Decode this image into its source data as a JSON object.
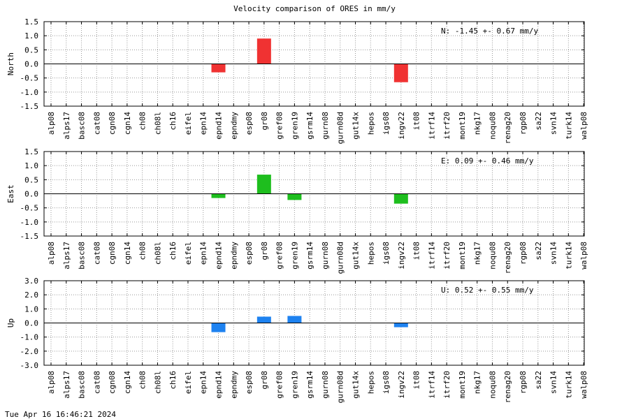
{
  "title": "Velocity comparison of ORES in mm/y",
  "footer": "Tue Apr 16 16:46:21 2024",
  "chart_data": [
    {
      "type": "bar",
      "ylabel": "North",
      "ylim": [
        -1.5,
        1.5
      ],
      "yticks": [
        1.5,
        1.0,
        0.5,
        0.0,
        -0.5,
        -1.0,
        -1.5
      ],
      "ytick_labels": [
        "1.5",
        "1.0",
        "0.5",
        "0.0",
        "-0.5",
        "-1.0",
        "-1.5"
      ],
      "color": "#f03232",
      "annotation": "N:  -1.45 +-  0.67 mm/y",
      "grid": true,
      "categories": [
        "alp08",
        "alps17",
        "basc08",
        "cat08",
        "cgn08",
        "cgn14",
        "ch08",
        "ch08l",
        "ch16",
        "eifel",
        "epn14",
        "epnd14",
        "epndmy",
        "esp08",
        "gr08",
        "gref08",
        "gren19",
        "gsrm14",
        "gurn08",
        "gurn08d",
        "gut14x",
        "hepos",
        "igs08",
        "ingv22",
        "it08",
        "itrf14",
        "itrf20",
        "mont19",
        "nkg17",
        "noqu08",
        "renag20",
        "rgp08",
        "sa22",
        "svn14",
        "turk14",
        "walp08"
      ],
      "values": [
        null,
        null,
        null,
        null,
        null,
        null,
        null,
        null,
        null,
        null,
        null,
        -0.3,
        null,
        null,
        0.9,
        null,
        null,
        null,
        null,
        null,
        null,
        null,
        null,
        -0.65,
        null,
        null,
        null,
        null,
        null,
        null,
        null,
        null,
        null,
        null,
        null,
        null
      ]
    },
    {
      "type": "bar",
      "ylabel": "East",
      "ylim": [
        -1.5,
        1.5
      ],
      "yticks": [
        1.5,
        1.0,
        0.5,
        0.0,
        -0.5,
        -1.0,
        -1.5
      ],
      "ytick_labels": [
        "1.5",
        "1.0",
        "0.5",
        "0.0",
        "-0.5",
        "-1.0",
        "-1.5"
      ],
      "color": "#1ebe1e",
      "annotation": "E:   0.09 +-  0.46 mm/y",
      "grid": true,
      "categories": [
        "alp08",
        "alps17",
        "basc08",
        "cat08",
        "cgn08",
        "cgn14",
        "ch08",
        "ch08l",
        "ch16",
        "eifel",
        "epn14",
        "epnd14",
        "epndmy",
        "esp08",
        "gr08",
        "gref08",
        "gren19",
        "gsrm14",
        "gurn08",
        "gurn08d",
        "gut14x",
        "hepos",
        "igs08",
        "ingv22",
        "it08",
        "itrf14",
        "itrf20",
        "mont19",
        "nkg17",
        "noqu08",
        "renag20",
        "rgp08",
        "sa22",
        "svn14",
        "turk14",
        "walp08"
      ],
      "values": [
        null,
        null,
        null,
        null,
        null,
        null,
        null,
        null,
        null,
        null,
        null,
        -0.15,
        null,
        null,
        0.68,
        null,
        -0.22,
        null,
        null,
        null,
        null,
        null,
        null,
        -0.35,
        null,
        null,
        null,
        null,
        null,
        null,
        null,
        null,
        null,
        null,
        null,
        null
      ]
    },
    {
      "type": "bar",
      "ylabel": "Up",
      "ylim": [
        -3.0,
        3.0
      ],
      "yticks": [
        3.0,
        2.0,
        1.0,
        0.0,
        -1.0,
        -2.0,
        -3.0
      ],
      "ytick_labels": [
        "3.0",
        "2.0",
        "1.0",
        "0.0",
        "-1.0",
        "-2.0",
        "-3.0"
      ],
      "color": "#1e82f0",
      "annotation": "U:   0.52 +-  0.55 mm/y",
      "grid": true,
      "categories": [
        "alp08",
        "alps17",
        "basc08",
        "cat08",
        "cgn08",
        "cgn14",
        "ch08",
        "ch08l",
        "ch16",
        "eifel",
        "epn14",
        "epnd14",
        "epndmy",
        "esp08",
        "gr08",
        "gref08",
        "gren19",
        "gsrm14",
        "gurn08",
        "gurn08d",
        "gut14x",
        "hepos",
        "igs08",
        "ingv22",
        "it08",
        "itrf14",
        "itrf20",
        "mont19",
        "nkg17",
        "noqu08",
        "renag20",
        "rgp08",
        "sa22",
        "svn14",
        "turk14",
        "walp08"
      ],
      "values": [
        null,
        null,
        null,
        null,
        null,
        null,
        null,
        null,
        null,
        null,
        null,
        -0.65,
        null,
        null,
        0.45,
        null,
        0.5,
        null,
        null,
        null,
        null,
        null,
        null,
        -0.3,
        null,
        null,
        null,
        null,
        null,
        null,
        null,
        null,
        null,
        null,
        null,
        null
      ]
    }
  ]
}
